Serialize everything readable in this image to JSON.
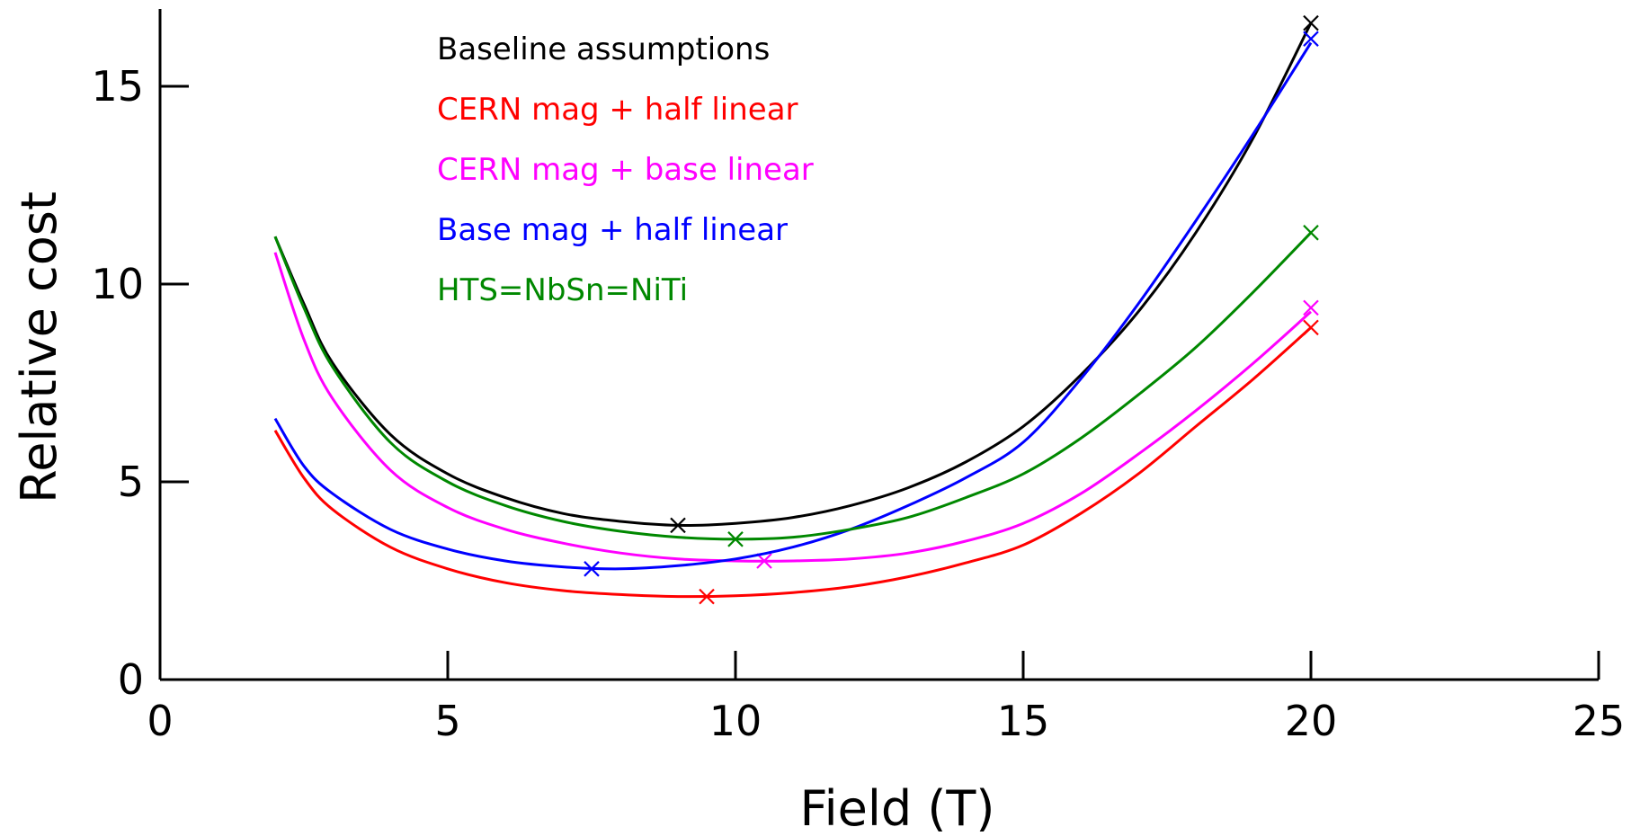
{
  "chart_data": {
    "type": "line",
    "title": "",
    "xlabel": "Field (T)",
    "ylabel": "Relative cost",
    "xlim": [
      0,
      25
    ],
    "ylim": [
      0,
      17
    ],
    "xticks": [
      0,
      5,
      10,
      15,
      20,
      25
    ],
    "yticks": [
      0,
      5,
      10,
      15
    ],
    "xtick_labels": [
      "0",
      "5",
      "10",
      "15",
      "20",
      "25"
    ],
    "ytick_labels": [
      "0",
      "5",
      "10",
      "15"
    ],
    "grid": false,
    "legend_position": "top-center",
    "series": [
      {
        "name": "Baseline assumptions",
        "color": "#000000",
        "x": [
          2,
          2.5,
          3,
          4,
          5,
          6,
          7,
          8,
          9,
          10,
          11,
          12,
          13,
          14,
          15,
          16,
          17,
          18,
          19,
          20
        ],
        "y": [
          11.2,
          9.5,
          8.0,
          6.2,
          5.2,
          4.6,
          4.2,
          4.0,
          3.9,
          3.95,
          4.1,
          4.4,
          4.85,
          5.5,
          6.4,
          7.7,
          9.3,
          11.3,
          13.7,
          16.6
        ],
        "marker_x": [
          9,
          20
        ],
        "marker_y": [
          3.9,
          16.6
        ]
      },
      {
        "name": "CERN mag  +  half linear",
        "color": "#ff0000",
        "x": [
          2,
          2.5,
          3,
          4,
          5,
          6,
          7,
          8,
          9,
          10,
          11,
          12,
          13,
          14,
          15,
          16,
          17,
          18,
          19,
          20
        ],
        "y": [
          6.3,
          5.1,
          4.3,
          3.35,
          2.8,
          2.45,
          2.25,
          2.15,
          2.1,
          2.12,
          2.2,
          2.35,
          2.6,
          2.95,
          3.4,
          4.2,
          5.2,
          6.4,
          7.6,
          8.9
        ],
        "marker_x": [
          9.5,
          20
        ],
        "marker_y": [
          2.1,
          8.9
        ]
      },
      {
        "name": "CERN mag + base linear",
        "color": "#ff00ff",
        "x": [
          2,
          2.5,
          3,
          4,
          5,
          6,
          7,
          8,
          9,
          10,
          11,
          12,
          13,
          14,
          15,
          16,
          17,
          18,
          19,
          20
        ],
        "y": [
          10.8,
          8.6,
          7.1,
          5.3,
          4.35,
          3.8,
          3.45,
          3.2,
          3.05,
          3.0,
          3.0,
          3.05,
          3.2,
          3.5,
          3.95,
          4.7,
          5.7,
          6.8,
          8.0,
          9.3
        ],
        "marker_x": [
          10.5,
          20
        ],
        "marker_y": [
          3.0,
          9.4
        ]
      },
      {
        "name": "Base mag + half linear",
        "color": "#0000ff",
        "x": [
          2,
          2.5,
          3,
          4,
          5,
          6,
          7,
          8,
          9,
          10,
          11,
          12,
          13,
          14,
          15,
          16,
          17,
          18,
          19,
          20
        ],
        "y": [
          6.6,
          5.4,
          4.7,
          3.8,
          3.3,
          3.0,
          2.85,
          2.8,
          2.88,
          3.05,
          3.35,
          3.8,
          4.4,
          5.1,
          6.0,
          7.6,
          9.5,
          11.6,
          13.8,
          16.1
        ],
        "marker_x": [
          7.5,
          20
        ],
        "marker_y": [
          2.8,
          16.2
        ]
      },
      {
        "name": "HTS=NbSn=NiTi",
        "color": "#008800",
        "x": [
          2,
          2.5,
          3,
          4,
          5,
          6,
          7,
          8,
          9,
          10,
          11,
          12,
          13,
          14,
          15,
          16,
          17,
          18,
          19,
          20
        ],
        "y": [
          11.2,
          9.4,
          7.9,
          6.0,
          5.0,
          4.4,
          4.0,
          3.75,
          3.6,
          3.55,
          3.6,
          3.8,
          4.1,
          4.6,
          5.2,
          6.1,
          7.2,
          8.4,
          9.8,
          11.3
        ],
        "marker_x": [
          10,
          20
        ],
        "marker_y": [
          3.55,
          11.3
        ]
      }
    ]
  }
}
